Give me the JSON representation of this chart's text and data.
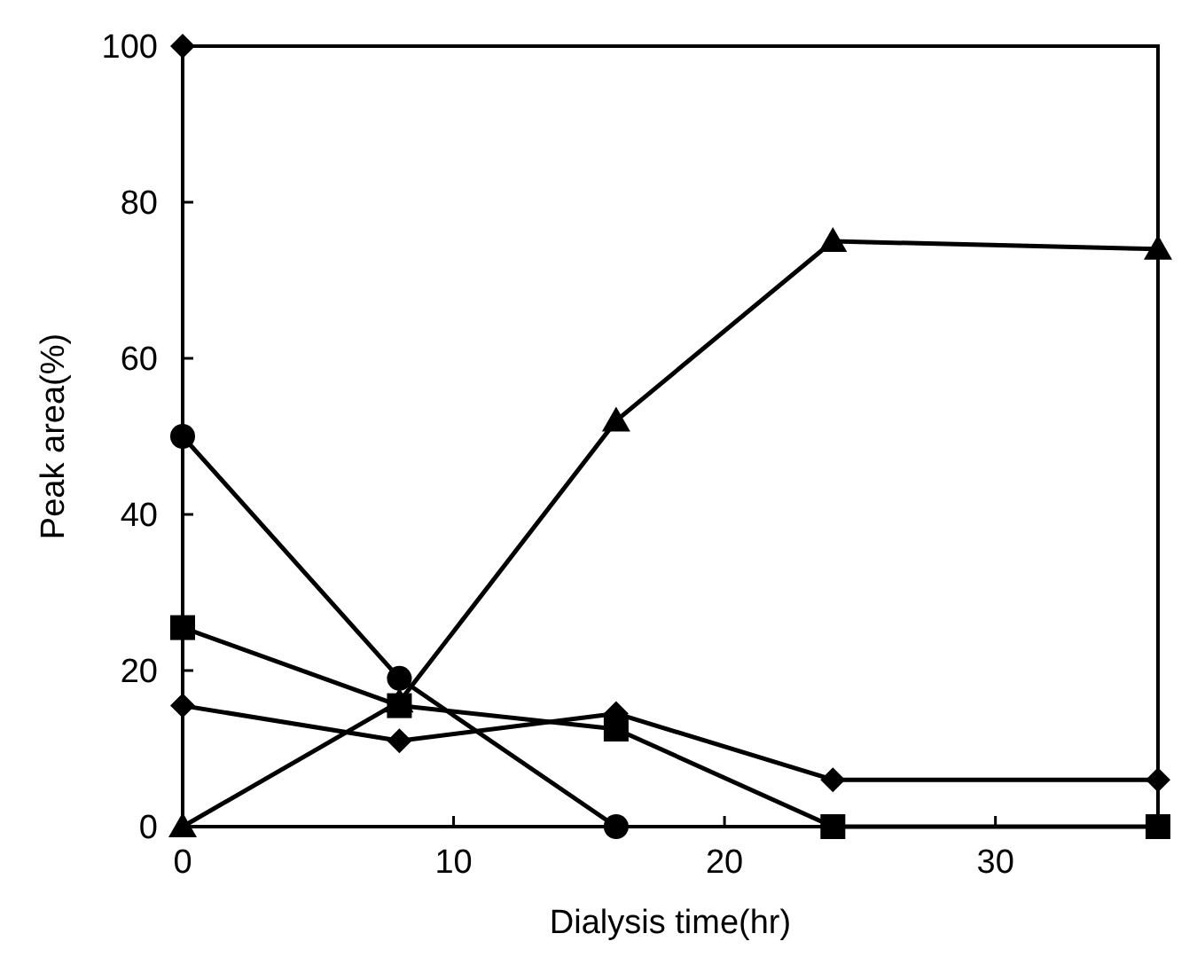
{
  "chart_data": {
    "type": "line",
    "xlabel": "Dialysis time(hr)",
    "ylabel": "Peak area(%)",
    "x": [
      0,
      8,
      16,
      24,
      36
    ],
    "xlim": [
      0,
      36
    ],
    "xticks": [
      0,
      10,
      20,
      30
    ],
    "ylim": [
      0,
      100
    ],
    "yticks": [
      0,
      20,
      40,
      60,
      80,
      100
    ],
    "grid": false,
    "line_style": "solid",
    "series": [
      {
        "color": "#000000",
        "marker": "diamond",
        "values": [
          100,
          null,
          null,
          null,
          null
        ]
      },
      {
        "color": "#000000",
        "marker": "circle",
        "values": [
          50,
          19,
          0,
          null,
          null
        ]
      },
      {
        "color": "#000000",
        "marker": "square",
        "values": [
          25.5,
          15.5,
          12.5,
          0,
          0
        ]
      },
      {
        "color": "#000000",
        "marker": "diamond",
        "values": [
          15.5,
          11,
          14.5,
          6,
          6
        ]
      },
      {
        "color": "#000000",
        "marker": "triangle",
        "values": [
          0,
          16,
          52,
          75,
          74
        ]
      }
    ]
  }
}
